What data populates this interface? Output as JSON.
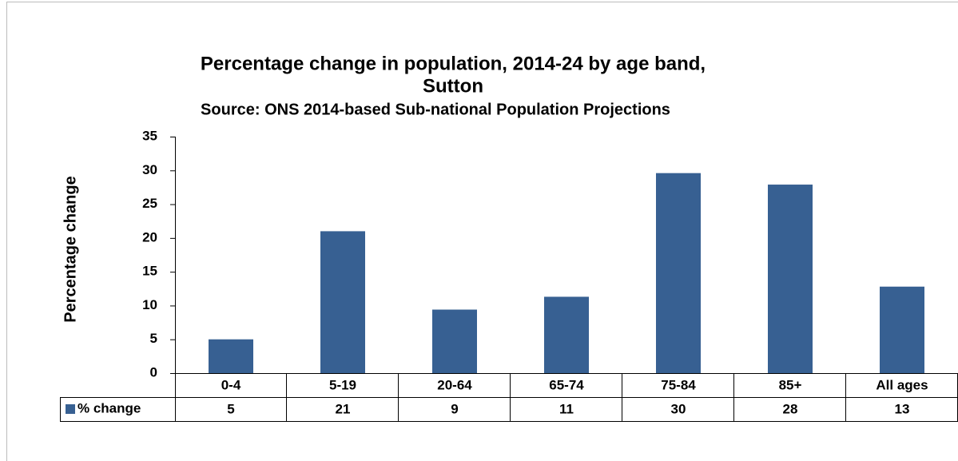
{
  "chart_data": {
    "type": "bar",
    "title": [
      "Percentage change in population, 2014-24 by age band,",
      "Sutton"
    ],
    "subtitle": "Source: ONS 2014-based Sub-national Population Projections",
    "y_label": "Percentage change",
    "categories": [
      "0-4",
      "5-19",
      "20-64",
      "65-74",
      "75-84",
      "85+",
      "All ages"
    ],
    "series": [
      {
        "name": "% change",
        "color": "#376092",
        "values": [
          5.0,
          21.0,
          9.4,
          11.3,
          29.6,
          27.9,
          12.8
        ],
        "value_labels": [
          "5",
          "21",
          "9",
          "11",
          "30",
          "28",
          "13"
        ]
      }
    ],
    "ylim": [
      0,
      35
    ],
    "yticks": [
      0,
      5,
      10,
      15,
      20,
      25,
      30,
      35
    ],
    "grid": false
  }
}
